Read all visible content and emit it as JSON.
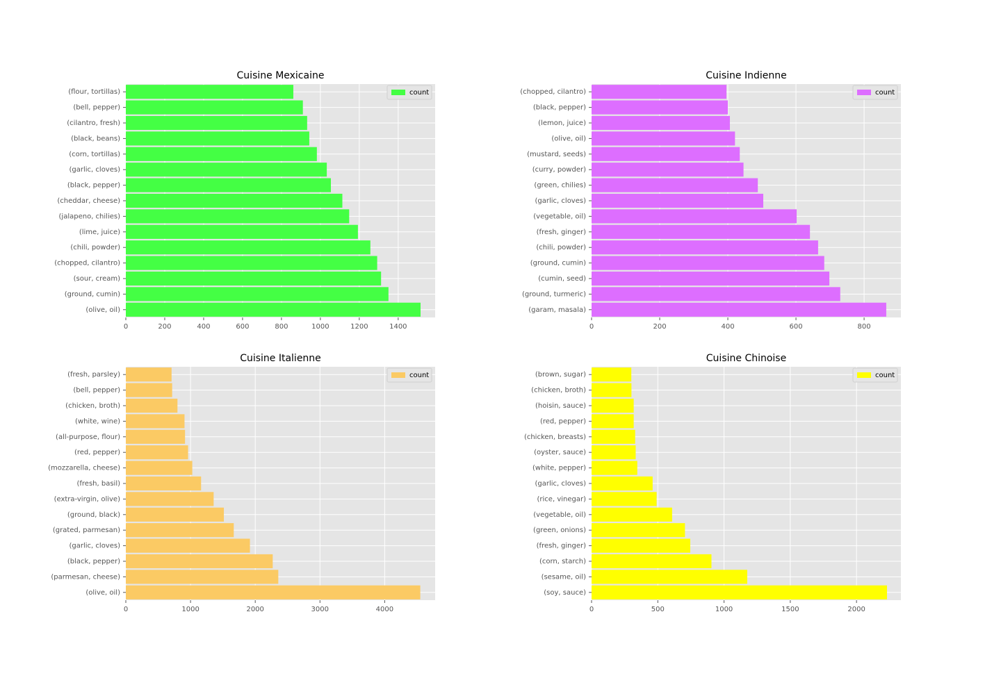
{
  "chart_data": [
    {
      "type": "bar",
      "orientation": "horizontal",
      "title": "Cuisine Mexicaine",
      "categories": [
        "(olive, oil)",
        "(ground, cumin)",
        "(sour, cream)",
        "(chopped, cilantro)",
        "(chili, powder)",
        "(lime, juice)",
        "(jalapeno, chilies)",
        "(cheddar, cheese)",
        "(black, pepper)",
        "(garlic, cloves)",
        "(corn, tortillas)",
        "(black, beans)",
        "(cilantro, fresh)",
        "(bell, pepper)",
        "(flour, tortillas)"
      ],
      "series": [
        {
          "name": "count",
          "values": [
            1515,
            1350,
            1312,
            1292,
            1257,
            1193,
            1148,
            1113,
            1054,
            1033,
            982,
            943,
            932,
            910,
            861
          ]
        }
      ],
      "xlim": [
        0,
        1590
      ],
      "xticks": [
        0,
        200,
        400,
        600,
        800,
        1000,
        1200,
        1400
      ],
      "color": "#44ff44",
      "legend_position": "upper right",
      "grid": true
    },
    {
      "type": "bar",
      "orientation": "horizontal",
      "title": "Cuisine Indienne",
      "categories": [
        "(garam, masala)",
        "(ground, turmeric)",
        "(cumin, seed)",
        "(ground, cumin)",
        "(chili, powder)",
        "(fresh, ginger)",
        "(vegetable, oil)",
        "(garlic, cloves)",
        "(green, chilies)",
        "(curry, powder)",
        "(mustard, seeds)",
        "(olive, oil)",
        "(lemon, juice)",
        "(black, pepper)",
        "(chopped, cilantro)"
      ],
      "series": [
        {
          "name": "count",
          "values": [
            865,
            730,
            698,
            683,
            665,
            641,
            602,
            504,
            488,
            446,
            435,
            421,
            406,
            400,
            396
          ]
        }
      ],
      "xlim": [
        0,
        908
      ],
      "xticks": [
        0,
        200,
        400,
        600,
        800
      ],
      "color": "#dd6eff",
      "legend_position": "upper right",
      "grid": true
    },
    {
      "type": "bar",
      "orientation": "horizontal",
      "title": "Cuisine Italienne",
      "categories": [
        "(olive, oil)",
        "(parmesan, cheese)",
        "(black, pepper)",
        "(garlic, cloves)",
        "(grated, parmesan)",
        "(ground, black)",
        "(extra-virgin, olive)",
        "(fresh, basil)",
        "(mozzarella, cheese)",
        "(red, pepper)",
        "(all-purpose, flour)",
        "(white, wine)",
        "(chicken, broth)",
        "(bell, pepper)",
        "(fresh, parsley)"
      ],
      "series": [
        {
          "name": "count",
          "values": [
            4550,
            2356,
            2270,
            1918,
            1668,
            1515,
            1357,
            1163,
            1027,
            962,
            915,
            907,
            798,
            716,
            707
          ]
        }
      ],
      "xlim": [
        0,
        4780
      ],
      "xticks": [
        0,
        1000,
        2000,
        3000,
        4000
      ],
      "color": "#fbca64",
      "legend_position": "upper right",
      "grid": true
    },
    {
      "type": "bar",
      "orientation": "horizontal",
      "title": "Cuisine Chinoise",
      "categories": [
        "(soy, sauce)",
        "(sesame, oil)",
        "(corn, starch)",
        "(fresh, ginger)",
        "(green, onions)",
        "(vegetable, oil)",
        "(rice, vinegar)",
        "(garlic, cloves)",
        "(white, pepper)",
        "(oyster, sauce)",
        "(chicken, breasts)",
        "(red, pepper)",
        "(hoisin, sauce)",
        "(chicken, broth)",
        "(brown, sugar)"
      ],
      "series": [
        {
          "name": "count",
          "values": [
            2230,
            1175,
            905,
            745,
            705,
            608,
            491,
            461,
            345,
            333,
            329,
            318,
            318,
            301,
            300
          ]
        }
      ],
      "xlim": [
        0,
        2335
      ],
      "xticks": [
        0,
        500,
        1000,
        1500,
        2000
      ],
      "color": "#ffff00",
      "legend_position": "upper right",
      "grid": true
    }
  ]
}
